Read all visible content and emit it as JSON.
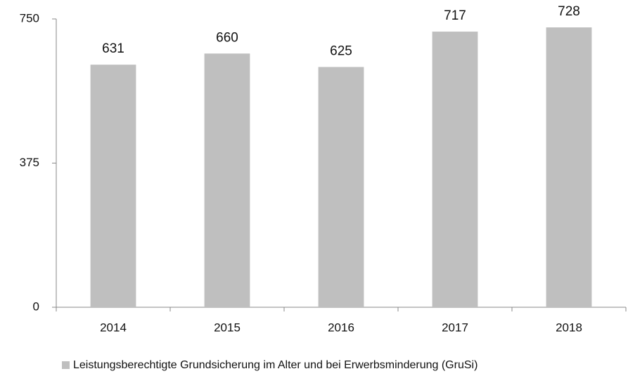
{
  "chart_data": {
    "type": "bar",
    "categories": [
      "2014",
      "2015",
      "2016",
      "2017",
      "2018"
    ],
    "series": [
      {
        "name": "Leistungsberechtigte Grundsicherung im Alter und bei Erwerbsminderung (GruSi)",
        "color": "#bfbfbf",
        "values": [
          631,
          660,
          625,
          717,
          728
        ]
      }
    ],
    "ylim": [
      0,
      750
    ],
    "yticks": [
      0,
      375,
      750
    ],
    "grid": false,
    "legend": "bottom"
  }
}
